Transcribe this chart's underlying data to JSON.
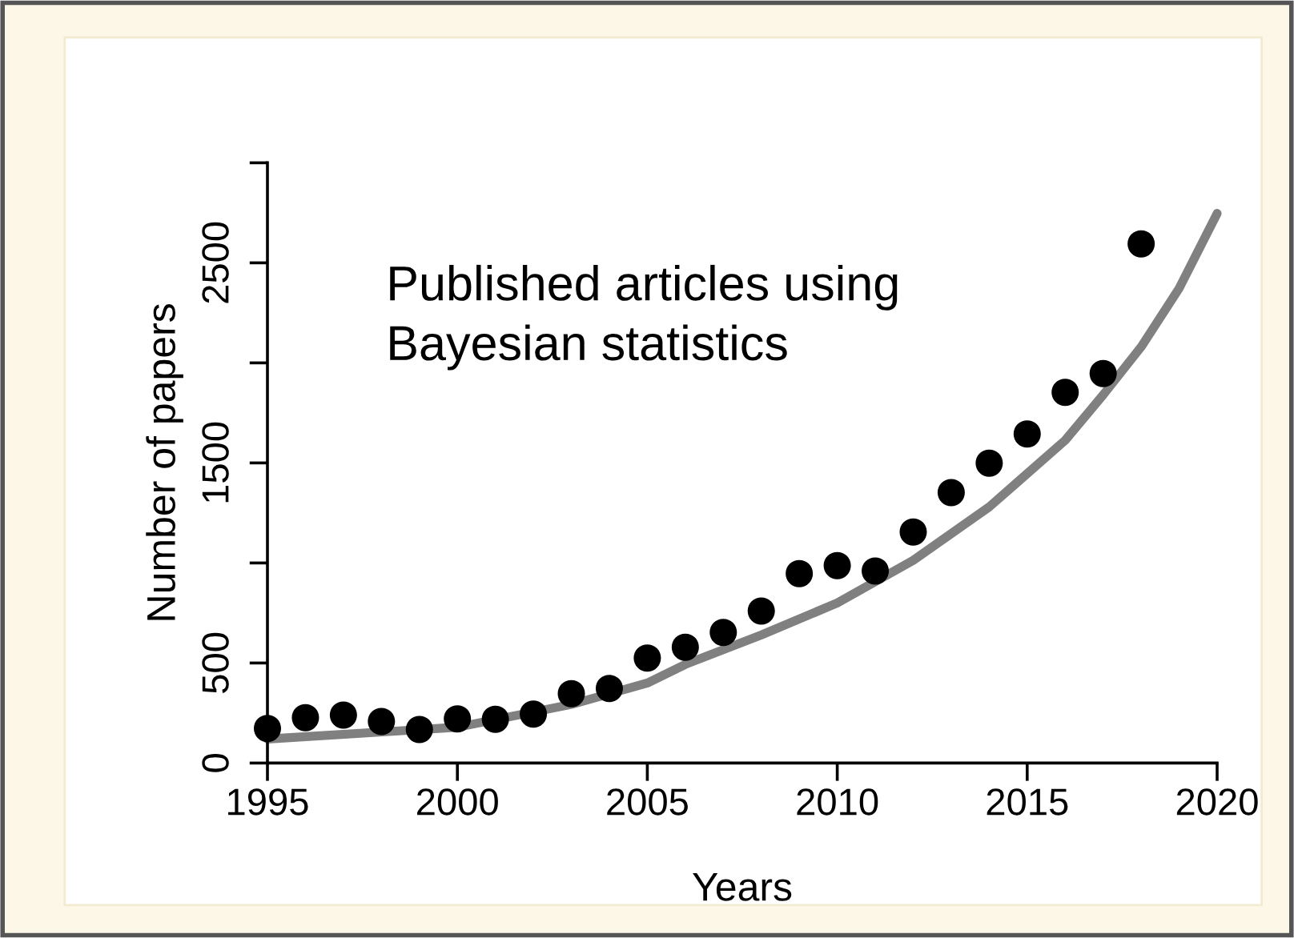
{
  "chart_data": {
    "type": "scatter",
    "xlabel": "Years",
    "ylabel": "Number of papers",
    "annotations": [
      "Published articles using\nBayesian statistics"
    ],
    "xlim": [
      1995,
      2020
    ],
    "ylim": [
      0,
      3000
    ],
    "xticks": [
      1995,
      2000,
      2005,
      2010,
      2015,
      2020
    ],
    "yticks": [
      0,
      500,
      {
        "value": 1000,
        "label": null
      },
      1500,
      {
        "value": 2000,
        "label": null
      },
      2500,
      {
        "value": 3000,
        "label": null
      }
    ],
    "grid": false,
    "legend": false,
    "series": [
      {
        "type": "line",
        "color": "#808080",
        "line_style": "solid",
        "marker": "none",
        "x": [
          1995,
          2000,
          2003,
          2005,
          2006,
          2008,
          2010,
          2012,
          2014,
          2016,
          2017,
          2018,
          2019,
          2020
        ],
        "values": [
          120,
          179,
          293,
          400,
          493,
          640,
          800,
          1013,
          1280,
          1613,
          1840,
          2080,
          2373,
          2747
        ]
      },
      {
        "marker": "circle",
        "color": "#000000",
        "x": [
          1995,
          1996,
          1997,
          1998,
          1999,
          2000,
          2001,
          2002,
          2003,
          2004,
          2005,
          2006,
          2007,
          2008,
          2009,
          2010,
          2011,
          2012,
          2013,
          2014,
          2015,
          2016,
          2017,
          2018
        ],
        "values": [
          173,
          227,
          240,
          208,
          168,
          221,
          219,
          245,
          347,
          373,
          525,
          579,
          653,
          760,
          947,
          987,
          960,
          1155,
          1352,
          1499,
          1645,
          1853,
          1947,
          2595
        ]
      }
    ]
  }
}
